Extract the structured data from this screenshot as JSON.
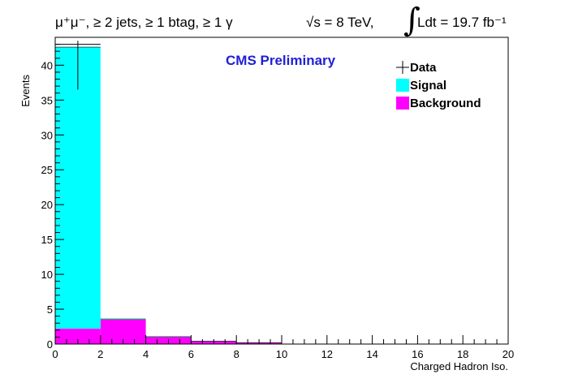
{
  "header": {
    "selection": "μ⁺μ⁻, ≥ 2 jets, ≥ 1 btag, ≥ 1 γ",
    "energy": "√s = 8 TeV,",
    "lumi": "Ldt = 19.7 fb⁻¹"
  },
  "chart_data": {
    "type": "bar",
    "subtype": "stacked-histogram",
    "xlabel": "Charged Hadron Iso.",
    "ylabel": "Events",
    "annotation": "CMS Preliminary",
    "xlim": [
      0,
      20
    ],
    "ylim": [
      0,
      44
    ],
    "x_ticks": [
      0,
      2,
      4,
      6,
      8,
      10,
      12,
      14,
      16,
      18,
      20
    ],
    "y_ticks": [
      0,
      5,
      10,
      15,
      20,
      25,
      30,
      35,
      40
    ],
    "bin_edges": [
      0,
      2,
      4,
      6,
      8,
      10,
      12,
      14,
      16,
      18,
      20
    ],
    "series": [
      {
        "name": "Background",
        "color": "#ff00ff",
        "values": [
          2.2,
          3.5,
          1.0,
          0.4,
          0.2,
          0,
          0,
          0,
          0,
          0
        ]
      },
      {
        "name": "Signal",
        "color": "#00ffff",
        "values": [
          40.4,
          0.1,
          0.05,
          0.02,
          0,
          0,
          0,
          0,
          0,
          0
        ]
      }
    ],
    "data_points": [
      {
        "x": 1,
        "y": 43,
        "yerr_low": 6.5,
        "yerr_high": 0.5
      }
    ],
    "legend": {
      "placement": "top-right",
      "entries": [
        {
          "label": "Data",
          "marker": "cross"
        },
        {
          "label": "Signal",
          "color": "#00ffff"
        },
        {
          "label": "Background",
          "color": "#ff00ff"
        }
      ]
    }
  }
}
